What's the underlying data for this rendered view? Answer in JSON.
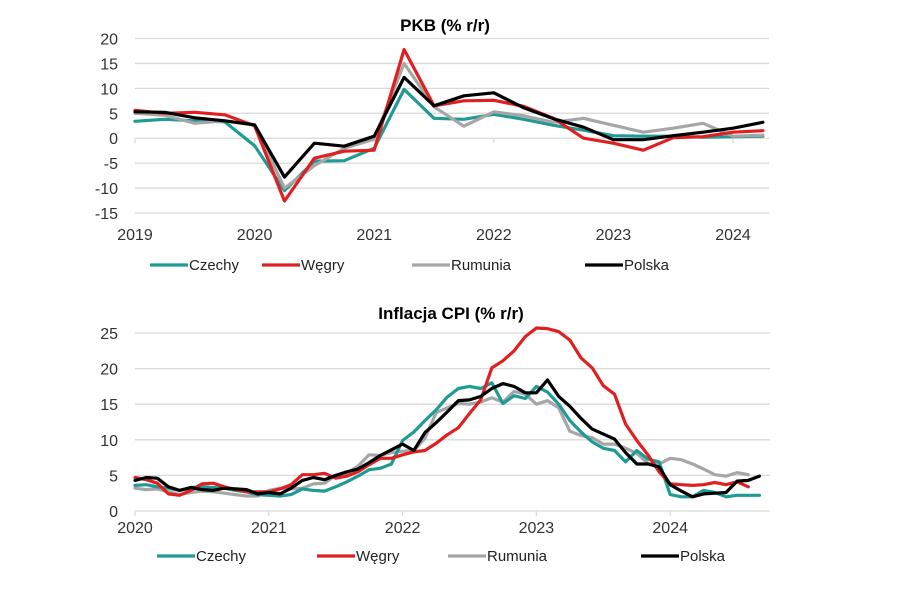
{
  "colors": {
    "Czechy": "#1f9a95",
    "Węgry": "#e02020",
    "Rumunia": "#a6a6a6",
    "Polska": "#000000"
  },
  "chart_data": [
    {
      "type": "line",
      "title": "PKB (% r/r)",
      "xlabel": "",
      "ylabel": "",
      "frequency": "quarterly",
      "start": "2019Q1",
      "x": [
        "2019Q1",
        "2019Q2",
        "2019Q3",
        "2019Q4",
        "2020Q1",
        "2020Q2",
        "2020Q3",
        "2020Q4",
        "2021Q1",
        "2021Q2",
        "2021Q3",
        "2021Q4",
        "2022Q1",
        "2022Q2",
        "2022Q3",
        "2022Q4",
        "2023Q1",
        "2023Q2",
        "2023Q3",
        "2023Q4",
        "2024Q1",
        "2024Q2"
      ],
      "xticks": [
        "2019",
        "2020",
        "2021",
        "2022",
        "2023",
        "2024"
      ],
      "yticks": [
        20,
        15,
        10,
        5,
        0,
        -5,
        -10,
        -15
      ],
      "ylim": [
        -15,
        20
      ],
      "grid": true,
      "legend": "bottom",
      "series": [
        {
          "name": "Czechy",
          "values": [
            3.4,
            3.8,
            3.5,
            3.3,
            -1.5,
            -10.5,
            -4.6,
            -4.5,
            -2.0,
            9.8,
            4.0,
            3.8,
            4.8,
            3.8,
            2.6,
            1.6,
            0.5,
            0.4,
            0.4,
            0.2,
            0.3,
            0.4
          ]
        },
        {
          "name": "Węgry",
          "values": [
            5.6,
            5.0,
            5.2,
            4.7,
            2.5,
            -12.6,
            -4.0,
            -2.6,
            -2.4,
            17.8,
            6.5,
            7.5,
            7.6,
            6.4,
            4.0,
            0.0,
            -1.0,
            -2.4,
            0.1,
            0.3,
            1.2,
            1.5
          ]
        },
        {
          "name": "Rumunia",
          "values": [
            5.0,
            4.6,
            3.0,
            3.5,
            2.6,
            -10.0,
            -5.5,
            -2.0,
            -0.2,
            15.0,
            6.3,
            2.4,
            5.3,
            4.5,
            3.2,
            4.0,
            2.6,
            1.2,
            2.0,
            3.0,
            0.4,
            0.6
          ]
        },
        {
          "name": "Polska",
          "values": [
            5.3,
            5.2,
            4.1,
            3.5,
            2.7,
            -7.8,
            -1.0,
            -1.6,
            0.4,
            12.2,
            6.5,
            8.5,
            9.1,
            6.1,
            3.9,
            2.2,
            -0.3,
            -0.3,
            0.5,
            1.2,
            2.0,
            3.2
          ]
        }
      ]
    },
    {
      "type": "line",
      "title": "Inflacja CPI (% r/r)",
      "xlabel": "",
      "ylabel": "",
      "frequency": "monthly",
      "start": "2020-01",
      "xticks": [
        "2020",
        "2021",
        "2022",
        "2023",
        "2024"
      ],
      "yticks": [
        25,
        20,
        15,
        10,
        5,
        0
      ],
      "ylim": [
        0,
        25
      ],
      "grid": true,
      "legend": "bottom",
      "series": [
        {
          "name": "Czechy",
          "values": [
            3.6,
            3.7,
            3.4,
            3.2,
            2.9,
            3.3,
            3.4,
            3.3,
            3.2,
            2.9,
            2.7,
            2.3,
            2.2,
            2.1,
            2.3,
            3.1,
            2.9,
            2.8,
            3.4,
            4.1,
            4.9,
            5.8,
            6.0,
            6.6,
            9.9,
            11.1,
            12.7,
            14.2,
            16.0,
            17.2,
            17.5,
            17.2,
            18.0,
            15.1,
            16.2,
            15.8,
            17.5,
            16.7,
            15.0,
            12.7,
            11.1,
            9.7,
            8.8,
            8.5,
            6.9,
            8.5,
            7.3,
            6.9,
            2.3,
            2.0,
            2.0,
            2.9,
            2.6,
            2.0,
            2.2,
            2.2,
            2.2
          ]
        },
        {
          "name": "Węgry",
          "values": [
            4.7,
            4.4,
            3.9,
            2.4,
            2.2,
            2.9,
            3.8,
            3.9,
            3.4,
            3.0,
            2.7,
            2.7,
            2.7,
            3.1,
            3.7,
            5.1,
            5.1,
            5.3,
            4.6,
            4.9,
            5.5,
            6.5,
            7.4,
            7.4,
            7.9,
            8.3,
            8.5,
            9.5,
            10.7,
            11.7,
            13.7,
            15.6,
            20.1,
            21.1,
            22.5,
            24.5,
            25.7,
            25.6,
            25.2,
            24.0,
            21.5,
            20.1,
            17.6,
            16.4,
            12.2,
            9.9,
            7.9,
            5.5,
            3.8,
            3.7,
            3.6,
            3.7,
            4.0,
            3.7,
            4.1,
            3.4
          ]
        },
        {
          "name": "Rumunia",
          "values": [
            3.2,
            3.0,
            3.1,
            2.7,
            2.3,
            2.6,
            2.8,
            2.7,
            2.5,
            2.3,
            2.1,
            2.1,
            2.9,
            3.2,
            3.1,
            3.2,
            3.8,
            3.9,
            5.0,
            5.3,
            6.3,
            7.9,
            7.8,
            8.2,
            8.4,
            8.5,
            10.2,
            13.8,
            14.5,
            15.1,
            15.0,
            15.3,
            15.9,
            15.3,
            16.8,
            16.4,
            15.0,
            15.5,
            14.5,
            11.2,
            10.6,
            10.3,
            9.4,
            9.4,
            8.8,
            8.1,
            6.7,
            6.6,
            7.4,
            7.2,
            6.6,
            5.9,
            5.1,
            4.9,
            5.4,
            5.1
          ]
        },
        {
          "name": "Polska",
          "values": [
            4.3,
            4.7,
            4.6,
            3.4,
            2.9,
            3.3,
            3.0,
            2.9,
            3.2,
            3.1,
            3.0,
            2.4,
            2.6,
            2.4,
            3.2,
            4.3,
            4.7,
            4.4,
            5.0,
            5.5,
            5.9,
            6.8,
            7.8,
            8.6,
            9.4,
            8.5,
            11.0,
            12.4,
            13.9,
            15.5,
            15.6,
            16.1,
            17.2,
            17.9,
            17.5,
            16.6,
            16.6,
            18.4,
            16.1,
            14.7,
            13.0,
            11.5,
            10.8,
            10.1,
            8.2,
            6.6,
            6.6,
            6.2,
            3.7,
            2.8,
            2.0,
            2.4,
            2.5,
            2.6,
            4.2,
            4.3,
            4.9
          ]
        }
      ]
    }
  ]
}
